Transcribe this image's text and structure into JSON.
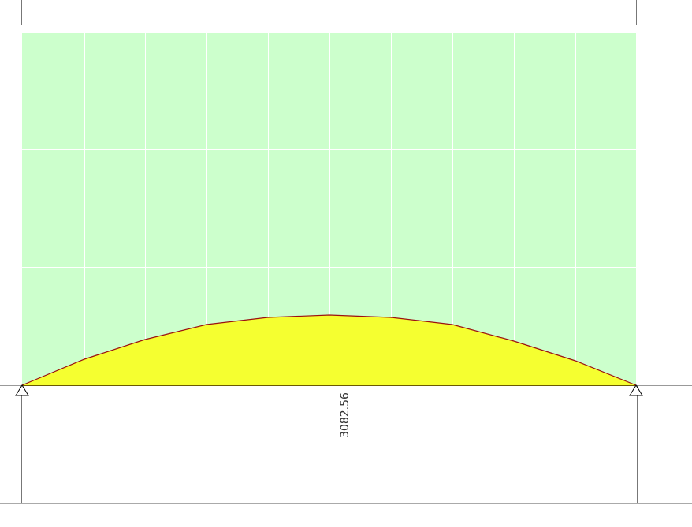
{
  "diagram": {
    "value_label": "3082.56"
  }
}
